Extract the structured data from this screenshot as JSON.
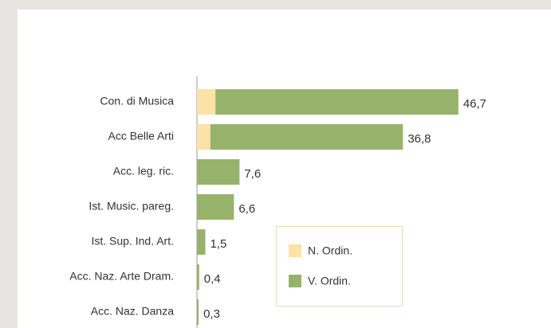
{
  "chart_data": {
    "type": "stacked_bar_horizontal",
    "categories": [
      "Con. di Musica",
      "Acc Belle Arti",
      "Acc. leg. ric.",
      "Ist. Music. pareg.",
      "Ist. Sup. Ind. Art.",
      "Acc. Naz. Arte Dram.",
      "Acc. Naz. Danza"
    ],
    "series": [
      {
        "name": "N. Ordin.",
        "color": "#fde2a6",
        "values": [
          3.3,
          2.4,
          0,
          0,
          0,
          0,
          0
        ]
      },
      {
        "name": "V. Ordin.",
        "color": "#97b36b",
        "values": [
          43.4,
          34.4,
          7.6,
          6.6,
          1.5,
          0.4,
          0.3
        ]
      }
    ],
    "totals": [
      46.7,
      36.8,
      7.6,
      6.6,
      1.5,
      0.4,
      0.3
    ],
    "total_labels": [
      "46,7",
      "36,8",
      "7,6",
      "6,6",
      "1,5",
      "0,4",
      "0,3"
    ],
    "xlim": [
      0,
      50
    ],
    "legend": "bottom-right"
  }
}
